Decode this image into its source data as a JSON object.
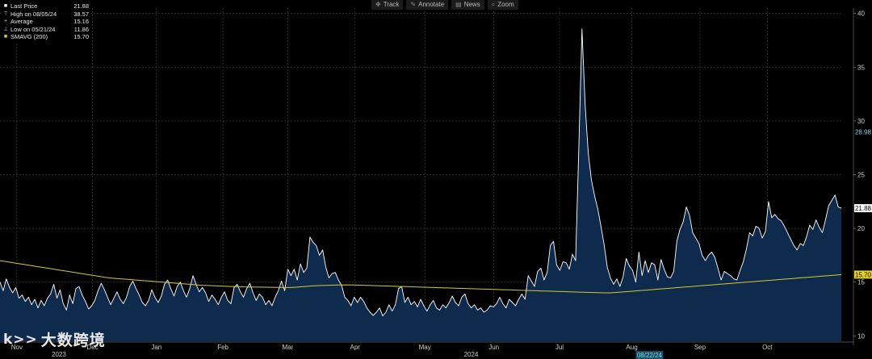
{
  "toolbar": [
    {
      "icon": "track-icon",
      "glyph": "✥",
      "label": "Track"
    },
    {
      "icon": "annotate-icon",
      "glyph": "✎",
      "label": "Annotate"
    },
    {
      "icon": "news-icon",
      "glyph": "▤",
      "label": "News"
    },
    {
      "icon": "zoom-icon",
      "glyph": "⌕",
      "label": "Zoom"
    }
  ],
  "legend": [
    {
      "key": "last",
      "symbol": "■",
      "color": "#ffffff",
      "label": "Last Price",
      "value": "21.88"
    },
    {
      "key": "high",
      "symbol": "⊤",
      "color": "#cccccc",
      "label": "High on 08/05/24",
      "value": "38.57"
    },
    {
      "key": "avg",
      "symbol": "+",
      "color": "#cccccc",
      "label": "Average",
      "value": "15.16"
    },
    {
      "key": "low",
      "symbol": "⊥",
      "color": "#cccccc",
      "label": "Low on 05/21/24",
      "value": "11.86"
    },
    {
      "key": "smavg",
      "symbol": "■",
      "color": "#f0d000",
      "label": "SMAVG (200)",
      "value": "15.70"
    }
  ],
  "watermark": {
    "logo": "k>>",
    "text": "大数跨境"
  },
  "colors": {
    "price_line": "#ffffff",
    "area_fill": "#0e2a4d",
    "smavg": "#d8c830",
    "grid": "#3a3a3a",
    "axis_text": "#cfcfcf",
    "badge_price": "#ffffff",
    "badge_smavg": "#e8d020",
    "badge_prev": "#7fd6e8"
  },
  "chart_data": {
    "type": "area",
    "y_axis": {
      "min": 9.5,
      "max": 40.5,
      "ticks": [
        10,
        15,
        20,
        25,
        30,
        35,
        40
      ],
      "side": "right"
    },
    "x_axis": {
      "labels": [
        {
          "t": 0.02,
          "text": "Nov"
        },
        {
          "t": 0.11,
          "text": "Dec"
        },
        {
          "t": 0.186,
          "text": "Jan"
        },
        {
          "t": 0.265,
          "text": "Feb"
        },
        {
          "t": 0.342,
          "text": "Mar"
        },
        {
          "t": 0.422,
          "text": "Apr"
        },
        {
          "t": 0.505,
          "text": "May"
        },
        {
          "t": 0.587,
          "text": "Jun"
        },
        {
          "t": 0.665,
          "text": "Jul"
        },
        {
          "t": 0.751,
          "text": "Aug"
        },
        {
          "t": 0.832,
          "text": "Sep"
        },
        {
          "t": 0.912,
          "text": "Oct"
        }
      ],
      "year_labels": [
        {
          "t": 0.07,
          "text": "2023"
        },
        {
          "t": 0.56,
          "text": "2024"
        }
      ],
      "highlight_label": {
        "t": 0.772,
        "text": "08/22/24"
      }
    },
    "grid": true,
    "badges": [
      {
        "value": 28.98,
        "text": "28.98",
        "style": "prev"
      },
      {
        "value": 21.88,
        "text": "21.88",
        "style": "price"
      },
      {
        "value": 15.7,
        "text": "15.70",
        "style": "smavg"
      }
    ],
    "series": [
      {
        "key": "price",
        "values": [
          15.0,
          14.2,
          15.3,
          14.5,
          14.0,
          14.5,
          13.5,
          13.8,
          13.2,
          13.6,
          12.9,
          13.4,
          12.6,
          13.3,
          12.8,
          13.5,
          13.9,
          14.8,
          13.5,
          14.3,
          13.0,
          12.4,
          13.8,
          13.0,
          14.4,
          14.6,
          13.8,
          13.2,
          12.5,
          12.8,
          13.3,
          14.2,
          14.9,
          14.3,
          13.6,
          12.9,
          13.5,
          14.1,
          13.4,
          13.0,
          13.6,
          14.6,
          15.1,
          14.4,
          13.8,
          13.1,
          12.8,
          13.3,
          14.3,
          13.6,
          13.1,
          13.7,
          14.8,
          15.2,
          14.4,
          13.7,
          14.6,
          15.0,
          14.2,
          13.6,
          14.4,
          15.6,
          14.8,
          14.1,
          14.5,
          14.0,
          13.2,
          13.8,
          13.4,
          12.9,
          13.6,
          14.1,
          13.3,
          13.0,
          14.5,
          14.8,
          14.1,
          13.6,
          14.4,
          14.9,
          14.0,
          13.3,
          13.9,
          13.6,
          12.9,
          13.3,
          12.8,
          13.6,
          14.2,
          15.1,
          14.2,
          16.2,
          15.6,
          16.2,
          15.2,
          16.7,
          15.9,
          16.3,
          19.2,
          18.7,
          18.4,
          17.5,
          18.0,
          16.4,
          15.4,
          15.8,
          15.9,
          15.2,
          14.7,
          13.6,
          13.3,
          12.8,
          13.6,
          13.1,
          13.6,
          13.2,
          12.6,
          12.2,
          11.9,
          12.2,
          12.6,
          11.86,
          12.2,
          12.9,
          12.3,
          12.9,
          14.4,
          14.6,
          13.1,
          13.6,
          12.9,
          13.2,
          12.7,
          13.4,
          12.8,
          12.3,
          12.9,
          13.3,
          12.6,
          12.4,
          12.9,
          12.6,
          13.1,
          13.7,
          13.1,
          12.8,
          13.6,
          13.9,
          13.0,
          12.6,
          12.9,
          12.4,
          12.6,
          12.2,
          12.4,
          12.8,
          12.7,
          13.0,
          13.6,
          13.0,
          12.6,
          13.4,
          13.1,
          12.8,
          13.4,
          13.9,
          13.4,
          15.6,
          15.1,
          14.6,
          16.0,
          16.3,
          15.2,
          15.9,
          18.4,
          18.8,
          16.6,
          16.1,
          16.9,
          16.8,
          16.2,
          17.6,
          17.0,
          27.5,
          38.57,
          31.5,
          27.0,
          24.5,
          23.0,
          21.8,
          20.2,
          18.5,
          16.4,
          15.4,
          14.8,
          15.3,
          14.6,
          15.5,
          17.2,
          16.5,
          16.1,
          15.0,
          17.8,
          15.6,
          17.0,
          15.9,
          16.8,
          16.6,
          15.2,
          17.1,
          16.2,
          15.5,
          15.4,
          16.0,
          18.8,
          19.9,
          20.6,
          22.0,
          21.2,
          19.6,
          19.1,
          18.6,
          17.5,
          17.0,
          17.5,
          17.8,
          17.3,
          16.3,
          15.2,
          16.0,
          15.8,
          15.6,
          15.3,
          15.2,
          16.1,
          16.9,
          18.1,
          19.6,
          19.3,
          20.2,
          20.0,
          19.1,
          19.7,
          22.5,
          21.0,
          21.3,
          20.9,
          20.7,
          20.2,
          19.6,
          19.0,
          18.4,
          18.0,
          18.6,
          18.4,
          19.2,
          20.3,
          19.9,
          20.8,
          20.1,
          19.6,
          20.8,
          22.1,
          22.6,
          23.1,
          22.0,
          21.88
        ]
      },
      {
        "key": "smavg",
        "values": [
          17.0,
          16.9,
          16.8,
          16.7,
          16.6,
          16.5,
          16.4,
          16.3,
          16.2,
          16.1,
          16.0,
          15.9,
          15.8,
          15.7,
          15.6,
          15.5,
          15.4,
          15.35,
          15.3,
          15.25,
          15.2,
          15.15,
          15.1,
          15.05,
          15.0,
          14.95,
          14.9,
          14.85,
          14.8,
          14.75,
          14.7,
          14.68,
          14.65,
          14.62,
          14.6,
          14.58,
          14.56,
          14.55,
          14.54,
          14.53,
          14.52,
          14.51,
          14.5,
          14.5,
          14.55,
          14.6,
          14.65,
          14.68,
          14.7,
          14.72,
          14.74,
          14.75,
          14.74,
          14.72,
          14.7,
          14.68,
          14.66,
          14.64,
          14.62,
          14.6,
          14.58,
          14.56,
          14.54,
          14.52,
          14.5,
          14.48,
          14.46,
          14.44,
          14.42,
          14.4,
          14.38,
          14.36,
          14.34,
          14.32,
          14.3,
          14.28,
          14.26,
          14.24,
          14.22,
          14.2,
          14.18,
          14.16,
          14.14,
          14.12,
          14.1,
          14.08,
          14.06,
          14.04,
          14.02,
          14.0,
          14.0,
          14.05,
          14.1,
          14.15,
          14.2,
          14.25,
          14.3,
          14.35,
          14.4,
          14.45,
          14.5,
          14.55,
          14.6,
          14.65,
          14.7,
          14.75,
          14.8,
          14.85,
          14.9,
          14.95,
          15.0,
          15.05,
          15.1,
          15.15,
          15.2,
          15.25,
          15.3,
          15.35,
          15.4,
          15.45,
          15.5,
          15.55,
          15.6,
          15.65,
          15.7
        ]
      }
    ]
  }
}
